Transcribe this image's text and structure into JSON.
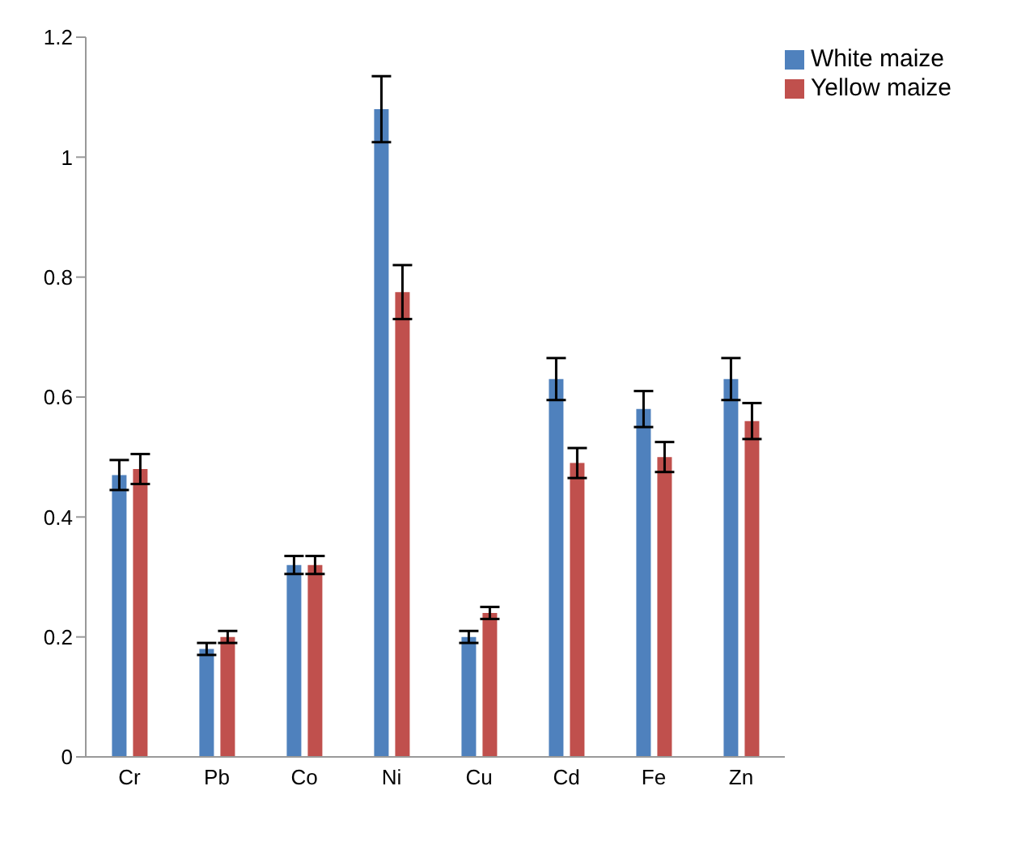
{
  "chart_data": {
    "type": "bar",
    "categories": [
      "Cr",
      "Pb",
      "Co",
      "Ni",
      "Cu",
      "Cd",
      "Fe",
      "Zn"
    ],
    "series": [
      {
        "name": "White maize",
        "color": "#4f81bd",
        "values": [
          0.47,
          0.18,
          0.32,
          1.08,
          0.2,
          0.63,
          0.58,
          0.63
        ],
        "errors": [
          0.025,
          0.01,
          0.015,
          0.055,
          0.01,
          0.035,
          0.03,
          0.035
        ]
      },
      {
        "name": "Yellow maize",
        "color": "#c0504d",
        "values": [
          0.48,
          0.2,
          0.32,
          0.775,
          0.24,
          0.49,
          0.5,
          0.56
        ],
        "errors": [
          0.025,
          0.01,
          0.015,
          0.045,
          0.01,
          0.025,
          0.025,
          0.03
        ]
      }
    ],
    "ylim": [
      0,
      1.2
    ],
    "yticks": [
      0,
      0.2,
      0.4,
      0.6,
      0.8,
      1,
      1.2
    ],
    "grid": false,
    "legend": "top right"
  }
}
